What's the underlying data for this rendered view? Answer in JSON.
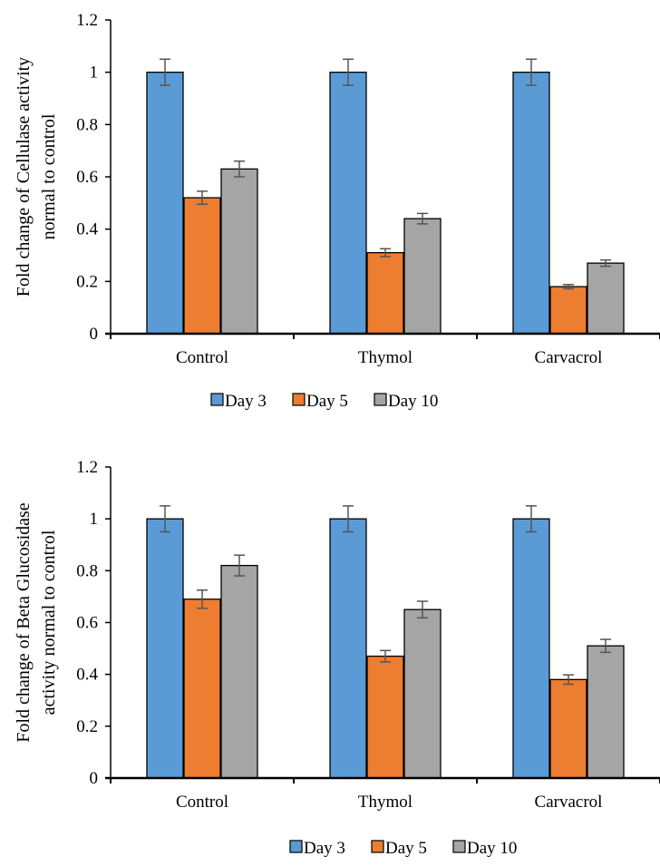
{
  "chart_data": [
    {
      "type": "bar",
      "title": "",
      "xlabel": "",
      "ylabel": [
        "Fold change of Cellulase activity",
        "normal to control"
      ],
      "ylim": [
        0,
        1.2
      ],
      "yticks": [
        "0",
        "0.2",
        "0.4",
        "0.6",
        "0.8",
        "1",
        "1.2"
      ],
      "categories": [
        "Control",
        "Thymol",
        "Carvacrol"
      ],
      "legend_position": "bottom",
      "series": [
        {
          "name": "Day 3",
          "color": "#5B9BD5",
          "values": [
            1.0,
            1.0,
            1.0
          ],
          "errors": [
            0.05,
            0.05,
            0.05
          ]
        },
        {
          "name": "Day 5",
          "color": "#ED7D31",
          "values": [
            0.52,
            0.31,
            0.18
          ],
          "errors": [
            0.025,
            0.015,
            0.008
          ]
        },
        {
          "name": "Day 10",
          "color": "#A5A5A5",
          "values": [
            0.63,
            0.44,
            0.27
          ],
          "errors": [
            0.03,
            0.02,
            0.012
          ]
        }
      ]
    },
    {
      "type": "bar",
      "title": "",
      "xlabel": "",
      "ylabel": [
        "Fold change of Beta Glucosidase",
        "activity normal to control"
      ],
      "ylim": [
        0,
        1.2
      ],
      "yticks": [
        "0",
        "0.2",
        "0.4",
        "0.6",
        "0.8",
        "1",
        "1.2"
      ],
      "categories": [
        "Control",
        "Thymol",
        "Carvacrol"
      ],
      "legend_position": "bottom",
      "series": [
        {
          "name": "Day 3",
          "color": "#5B9BD5",
          "values": [
            1.0,
            1.0,
            1.0
          ],
          "errors": [
            0.05,
            0.05,
            0.05
          ]
        },
        {
          "name": "Day 5",
          "color": "#ED7D31",
          "values": [
            0.69,
            0.47,
            0.38
          ],
          "errors": [
            0.035,
            0.022,
            0.018
          ]
        },
        {
          "name": "Day 10",
          "color": "#A5A5A5",
          "values": [
            0.82,
            0.65,
            0.51
          ],
          "errors": [
            0.04,
            0.032,
            0.025
          ]
        }
      ]
    }
  ]
}
